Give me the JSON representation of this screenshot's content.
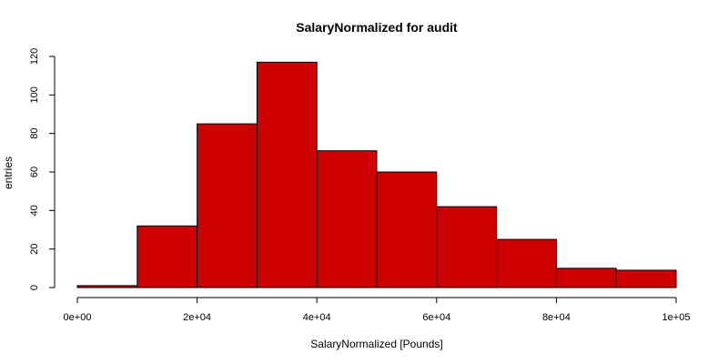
{
  "chart_data": {
    "type": "bar",
    "title": "SalaryNormalized for audit",
    "xlabel": "SalaryNormalized [Pounds]",
    "ylabel": "entries",
    "bar_color": "#cc0000",
    "bins": [
      {
        "start": 0,
        "end": 10000,
        "count": 1
      },
      {
        "start": 10000,
        "end": 20000,
        "count": 32
      },
      {
        "start": 20000,
        "end": 30000,
        "count": 85
      },
      {
        "start": 30000,
        "end": 40000,
        "count": 117
      },
      {
        "start": 40000,
        "end": 50000,
        "count": 71
      },
      {
        "start": 50000,
        "end": 60000,
        "count": 60
      },
      {
        "start": 60000,
        "end": 70000,
        "count": 42
      },
      {
        "start": 70000,
        "end": 80000,
        "count": 25
      },
      {
        "start": 80000,
        "end": 90000,
        "count": 10
      },
      {
        "start": 90000,
        "end": 100000,
        "count": 9
      }
    ],
    "xlim": [
      0,
      100000
    ],
    "ylim": [
      0,
      120
    ],
    "x_ticks": [
      {
        "value": 0,
        "label": "0e+00"
      },
      {
        "value": 20000,
        "label": "2e+04"
      },
      {
        "value": 40000,
        "label": "4e+04"
      },
      {
        "value": 60000,
        "label": "6e+04"
      },
      {
        "value": 80000,
        "label": "8e+04"
      },
      {
        "value": 100000,
        "label": "1e+05"
      }
    ],
    "y_ticks": [
      {
        "value": 0,
        "label": "0"
      },
      {
        "value": 20,
        "label": "20"
      },
      {
        "value": 40,
        "label": "40"
      },
      {
        "value": 60,
        "label": "60"
      },
      {
        "value": 80,
        "label": "80"
      },
      {
        "value": 100,
        "label": "100"
      },
      {
        "value": 120,
        "label": "120"
      }
    ],
    "grid": false,
    "legend": "none"
  }
}
